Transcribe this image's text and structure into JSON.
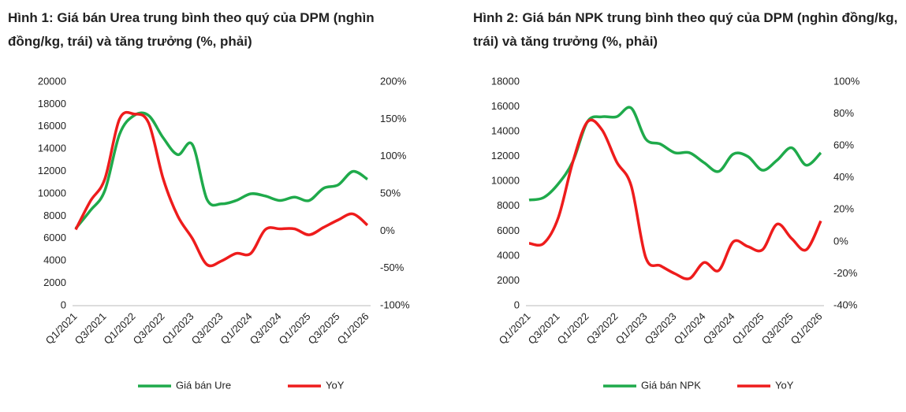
{
  "chart_data": [
    {
      "type": "line",
      "title": "Hình 1: Giá bán Urea trung bình theo quý của DPM (nghìn đồng/kg, trái) và tăng trưởng (%, phải)",
      "categories": [
        "Q1/2021",
        null,
        "Q3/2021",
        null,
        "Q1/2022",
        null,
        "Q3/2022",
        null,
        "Q1/2023",
        null,
        "Q3/2023",
        null,
        "Q1/2024",
        null,
        "Q3/2024",
        null,
        "Q1/2025",
        null,
        "Q3/2025",
        null,
        "Q1/2026"
      ],
      "series": [
        {
          "name": "Giá bán Ure",
          "color": "#1faa4b",
          "values": [
            6900,
            8500,
            10300,
            15300,
            17000,
            17000,
            15000,
            13500,
            14400,
            9500,
            9100,
            9400,
            10000,
            9800,
            9400,
            9700,
            9400,
            10500,
            10800,
            12000,
            11300
          ]
        },
        {
          "name": "YoY",
          "color": "#ee1c1c",
          "axis": "y2",
          "values": [
            2,
            40,
            70,
            150,
            157,
            145,
            70,
            20,
            -10,
            -45,
            -40,
            -30,
            -30,
            2,
            3,
            3,
            -5,
            5,
            15,
            23,
            8
          ]
        }
      ],
      "ylim": [
        0,
        20000
      ],
      "yticks": [
        0,
        2000,
        4000,
        6000,
        8000,
        10000,
        12000,
        14000,
        16000,
        18000,
        20000
      ],
      "y2lim": [
        -100,
        200
      ],
      "y2ticks": [
        {
          "value": -100,
          "label": "-100%"
        },
        {
          "value": -50,
          "label": "-50%"
        },
        {
          "value": 0,
          "label": "0%"
        },
        {
          "value": 50,
          "label": "50%"
        },
        {
          "value": 100,
          "label": "100%"
        },
        {
          "value": 150,
          "label": "150%"
        },
        {
          "value": 200,
          "label": "200%"
        }
      ]
    },
    {
      "type": "line",
      "title": "Hình 2: Giá bán NPK trung bình theo quý của DPM (nghìn đồng/kg, trái) và tăng trưởng (%, phải)",
      "categories": [
        "Q1/2021",
        null,
        "Q3/2021",
        null,
        "Q1/2022",
        null,
        "Q3/2022",
        null,
        "Q1/2023",
        null,
        "Q3/2023",
        null,
        "Q1/2024",
        null,
        "Q3/2024",
        null,
        "Q1/2025",
        null,
        "Q3/2025",
        null,
        "Q1/2026"
      ],
      "series": [
        {
          "name": "Giá bán NPK",
          "color": "#1faa4b",
          "values": [
            8500,
            8700,
            9800,
            11600,
            14800,
            15200,
            15200,
            15900,
            13400,
            13000,
            12300,
            12300,
            11500,
            10800,
            12200,
            12000,
            10900,
            11700,
            12700,
            11300,
            12300
          ]
        },
        {
          "name": "YoY",
          "color": "#ee1c1c",
          "axis": "y2",
          "values": [
            -1,
            -1,
            15,
            50,
            75,
            70,
            50,
            35,
            -10,
            -15,
            -20,
            -23,
            -13,
            -18,
            0,
            -3,
            -5,
            11,
            2,
            -5,
            13
          ]
        }
      ],
      "ylim": [
        0,
        18000
      ],
      "yticks": [
        0,
        2000,
        4000,
        6000,
        8000,
        10000,
        12000,
        14000,
        16000,
        18000
      ],
      "y2lim": [
        -40,
        100
      ],
      "y2ticks": [
        {
          "value": -40,
          "label": "-40%"
        },
        {
          "value": -20,
          "label": "-20%"
        },
        {
          "value": 0,
          "label": "0%"
        },
        {
          "value": 20,
          "label": "20%"
        },
        {
          "value": 40,
          "label": "40%"
        },
        {
          "value": 60,
          "label": "60%"
        },
        {
          "value": 80,
          "label": "80%"
        },
        {
          "value": 100,
          "label": "100%"
        }
      ]
    }
  ]
}
